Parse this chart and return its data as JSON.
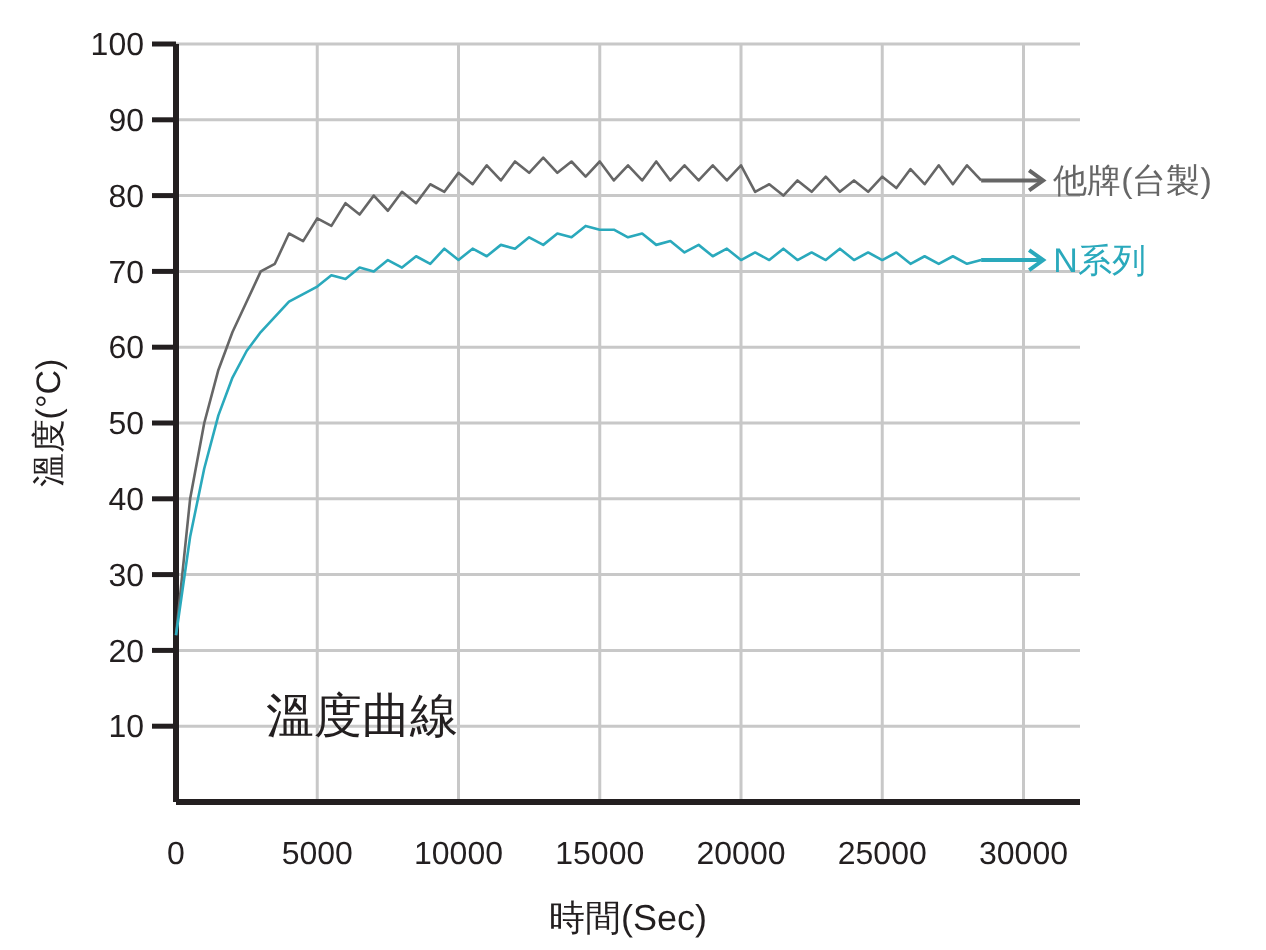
{
  "chart_data": {
    "type": "line",
    "xlabel": "時間(Sec)",
    "ylabel": "溫度(°C)",
    "annotations": [
      "溫度曲線"
    ],
    "x": [
      0,
      500,
      1000,
      1500,
      2000,
      2500,
      3000,
      3500,
      4000,
      4500,
      5000,
      5500,
      6000,
      6500,
      7000,
      7500,
      8000,
      8500,
      9000,
      9500,
      10000,
      10500,
      11000,
      11500,
      12000,
      12500,
      13000,
      13500,
      14000,
      14500,
      15000,
      15500,
      16000,
      16500,
      17000,
      17500,
      18000,
      18500,
      19000,
      19500,
      20000,
      20500,
      21000,
      21500,
      22000,
      22500,
      23000,
      23500,
      24000,
      24500,
      25000,
      25500,
      26000,
      26500,
      27000,
      27500,
      28000,
      28500
    ],
    "series": [
      {
        "name": "他牌(台製)",
        "color": "#666666",
        "values": [
          22,
          40,
          50,
          57,
          62,
          66,
          70,
          71,
          75,
          74,
          77,
          76,
          79,
          77.5,
          80,
          78,
          80.5,
          79,
          81.5,
          80.5,
          83,
          81.5,
          84,
          82,
          84.5,
          83,
          85,
          83,
          84.5,
          82.5,
          84.5,
          82,
          84,
          82,
          84.5,
          82,
          84,
          82,
          84,
          82,
          84,
          80.5,
          81.5,
          80,
          82,
          80.5,
          82.5,
          80.5,
          82,
          80.5,
          82.5,
          81,
          83.5,
          81.5,
          84,
          81.5,
          84,
          82
        ]
      },
      {
        "name": "N系列",
        "color": "#2aa9bc",
        "values": [
          22,
          35,
          44,
          51,
          56,
          59.5,
          62,
          64,
          66,
          67,
          68,
          69.5,
          69,
          70.5,
          70,
          71.5,
          70.5,
          72,
          71,
          73,
          71.5,
          73,
          72,
          73.5,
          73,
          74.5,
          73.5,
          75,
          74.5,
          76,
          75.5,
          75.5,
          74.5,
          75,
          73.5,
          74,
          72.5,
          73.5,
          72,
          73,
          71.5,
          72.5,
          71.5,
          73,
          71.5,
          72.5,
          71.5,
          73,
          71.5,
          72.5,
          71.5,
          72.5,
          71,
          72,
          71,
          72,
          71,
          71.5
        ]
      }
    ],
    "xlim": [
      0,
      32000
    ],
    "xticks": [
      0,
      5000,
      10000,
      15000,
      20000,
      25000,
      30000
    ],
    "ylim": [
      0,
      100
    ],
    "yticks": [
      10,
      20,
      30,
      40,
      50,
      60,
      70,
      80,
      90,
      100
    ],
    "grid": true,
    "legend": "right",
    "line_style": "solid",
    "marker": "none"
  }
}
